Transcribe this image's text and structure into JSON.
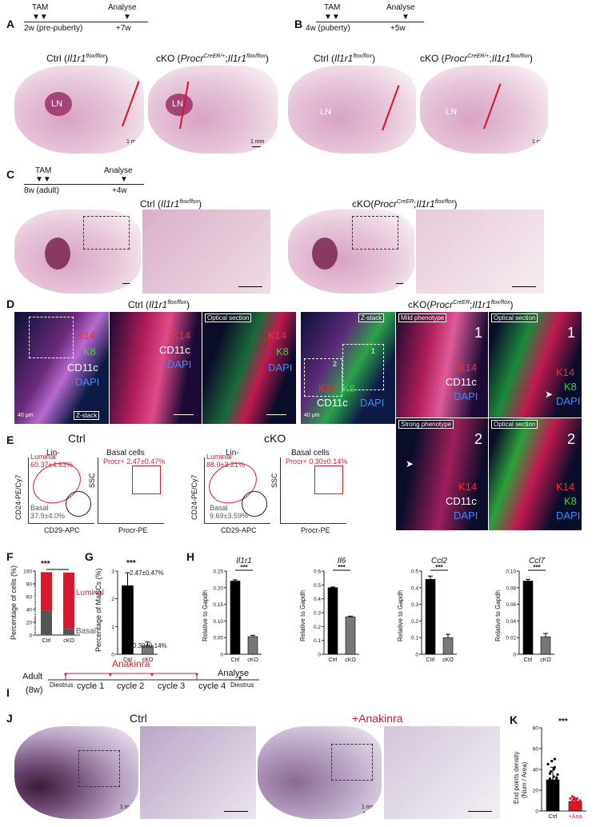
{
  "panels": {
    "A": {
      "letter": "A",
      "timeline": {
        "start": "TAM",
        "end": "Analyse",
        "age": "2w (pre-puberty)",
        "plus": "+7w"
      },
      "ctrl": {
        "prefix": "Ctrl (",
        "gene": "Il1r1",
        "sup": "flox/flox",
        "suffix": ")"
      },
      "cko": {
        "prefix": "cKO (",
        "gene": "Procr",
        "sup": "CreER/+",
        "mid": ";",
        "gene2": "Il1r1",
        "sup2": "flox/flox",
        "suffix": ")"
      },
      "ln": "LN",
      "scale": "1 mm"
    },
    "B": {
      "letter": "B",
      "timeline": {
        "start": "TAM",
        "end": "Analyse",
        "age": "4w (puberty)",
        "plus": "+5w"
      },
      "ln": "LN",
      "scale": "1 mm"
    },
    "C": {
      "letter": "C",
      "timeline": {
        "start": "TAM",
        "end": "Analyse",
        "age": "8w (adult)",
        "plus": "+4w"
      },
      "ctrl": {
        "prefix": "Ctrl (",
        "gene": "Il1r1",
        "sup": "flox/flox",
        "suffix": ")"
      },
      "cko": {
        "prefix": "cKO(",
        "gene": "Procr",
        "sup": "CreER",
        "mid": ";",
        "gene2": "Il1r1",
        "sup2": "flox/flox",
        "suffix": ")"
      }
    },
    "D": {
      "letter": "D",
      "ctrl_title": {
        "prefix": "Ctrl (",
        "gene": "Il1r1",
        "sup": "flox/flox",
        "suffix": ")"
      },
      "cko_title": {
        "prefix": "cKO(",
        "gene": "Procr",
        "sup": "CreER",
        "mid": ";",
        "gene2": "Il1r1",
        "sup2": "flox/flox",
        "suffix": ")"
      },
      "markers": {
        "k14": "K14",
        "k8": "K8",
        "cd11c": "CD11c",
        "dapi": "DAPI"
      },
      "tags": {
        "zstack": "Z-stack",
        "optical": "Optical section",
        "mild": "Mild phenotype",
        "strong": "Strong phenotype"
      },
      "scale": "40 μm",
      "n1": "1",
      "n2": "2"
    },
    "E": {
      "letter": "E",
      "ctrl_label": "Ctrl",
      "cko_label": "cKO",
      "lin": "Lin-",
      "basal_cells": "Basal cells",
      "ctrl": {
        "luminal": "Luminal",
        "luminal_val": "60.37±4.63%",
        "basal": "Basal",
        "basal_val": "37.9±4.0%",
        "procr": "Procr+ 2.47±0.47%"
      },
      "cko": {
        "luminal": "Luminal",
        "luminal_val": "88.0±3.21%",
        "basal": "Basal",
        "basal_val": "9.69±3.59%",
        "procr": "Procr+ 0.30±0.14%"
      },
      "axes": {
        "cd24": "CD24-PE/Cy7",
        "cd29": "CD29-APC",
        "ssc": "SSC",
        "procr": "Procr-PE"
      }
    },
    "F": {
      "letter": "F",
      "sig": "***",
      "ylabel": "Percentage of cells (%)",
      "luminal": "Luminal",
      "basal": "Basal",
      "ctrl_luminal_txt": "60.37±4.63",
      "ctrl_basal_txt": "37.9±4.0",
      "cko_luminal_txt": "88.0±3.21"
    },
    "G": {
      "letter": "G",
      "sig": "***",
      "ylabel": "Percentage of MaSCs (%)",
      "ctrl_val_txt": "2.47±0.47%",
      "cko_val_txt": "0.30±0.14%"
    },
    "H": {
      "letter": "H",
      "ylabel": "Relative to Gapdh"
    },
    "I": {
      "letter": "I",
      "adult": "Adult",
      "age": "(8w)",
      "drug": "Anakinra",
      "analyse": "Analyse",
      "diestrus1": "Diestrus",
      "diestrus2": "Diestrus",
      "cycles": [
        "cycle 1",
        "cycle 2",
        "cycle 3",
        "cycle 4"
      ]
    },
    "J": {
      "letter": "J",
      "ctrl": "Ctrl",
      "treat": "+Anakinra",
      "scale": "1 mm"
    },
    "K": {
      "letter": "K",
      "sig": "***",
      "ylabel": "End points density",
      "ylabel2": "(Num / Area)"
    }
  },
  "chart_data": [
    {
      "type": "bar",
      "panel": "F",
      "stacked": true,
      "categories": [
        "Ctrl",
        "cKO"
      ],
      "series": [
        {
          "name": "Basal",
          "values": [
            37.9,
            9.69
          ],
          "color": "#555555"
        },
        {
          "name": "Luminal",
          "values": [
            60.37,
            88.0
          ],
          "color": "#d7192b"
        }
      ],
      "ylim": [
        0,
        100
      ],
      "yticks": [
        "0",
        "20",
        "40",
        "60",
        "80",
        "100"
      ]
    },
    {
      "type": "bar",
      "panel": "G",
      "categories": [
        "Ctrl",
        "cKO"
      ],
      "values": [
        2.47,
        0.3
      ],
      "errors": [
        0.47,
        0.14
      ],
      "colors": [
        "#000000",
        "#777777"
      ],
      "ylim": [
        0,
        3
      ],
      "yticks": [
        "0",
        "1",
        "2",
        "3"
      ]
    },
    {
      "type": "bar",
      "panel": "H1",
      "title": "Il1r1",
      "categories": [
        "Ctrl",
        "cKO"
      ],
      "values": [
        0.22,
        0.053
      ],
      "errors": [
        0.004,
        0.004
      ],
      "colors": [
        "#000000",
        "#777777"
      ],
      "ylim": [
        0,
        0.25
      ],
      "yticks": [
        "0",
        "0.05",
        "0.10",
        "0.15",
        "0.20",
        "0.25"
      ],
      "sig": "***"
    },
    {
      "type": "bar",
      "panel": "H2",
      "title": "Il6",
      "categories": [
        "Ctrl",
        "cKO"
      ],
      "values": [
        0.48,
        0.27
      ],
      "errors": [
        0.005,
        0.005
      ],
      "colors": [
        "#000000",
        "#777777"
      ],
      "ylim": [
        0,
        0.6
      ],
      "yticks": [
        "0",
        "0.1",
        "0.2",
        "0.3",
        "0.4",
        "0.5",
        "0.6"
      ],
      "sig": "***"
    },
    {
      "type": "bar",
      "panel": "H3",
      "title": "Ccl2",
      "categories": [
        "Ctrl",
        "cKO"
      ],
      "values": [
        0.45,
        0.1
      ],
      "errors": [
        0.02,
        0.02
      ],
      "colors": [
        "#000000",
        "#777777"
      ],
      "ylim": [
        0,
        0.5
      ],
      "yticks": [
        "0",
        "0.1",
        "0.2",
        "0.3",
        "0.4",
        "0.5"
      ],
      "sig": "***"
    },
    {
      "type": "bar",
      "panel": "H4",
      "title": "Ccl7",
      "categories": [
        "Ctrl",
        "cKO"
      ],
      "values": [
        0.088,
        0.021
      ],
      "errors": [
        0.002,
        0.004
      ],
      "colors": [
        "#000000",
        "#777777"
      ],
      "ylim": [
        0,
        0.1
      ],
      "yticks": [
        "0",
        "0.02",
        "0.04",
        "0.06",
        "0.08",
        "0.10"
      ],
      "sig": "***"
    },
    {
      "type": "bar",
      "panel": "K",
      "categories": [
        "Ctrl",
        "+Ana"
      ],
      "values": [
        30,
        9
      ],
      "errors": [
        12,
        3
      ],
      "colors": [
        "#000000",
        "#d7192b"
      ],
      "ylim": [
        0,
        80
      ],
      "yticks": [
        "0",
        "20",
        "40",
        "60",
        "80"
      ],
      "points": [
        [
          18,
          22,
          25,
          27,
          28,
          30,
          31,
          33,
          35,
          38,
          42,
          45,
          48,
          20,
          24,
          29,
          32,
          36,
          40,
          26,
          15,
          50
        ],
        [
          5,
          6,
          7,
          8,
          8,
          9,
          9,
          10,
          10,
          11,
          12,
          12,
          13,
          7,
          9,
          11,
          6,
          14,
          8,
          10
        ]
      ]
    }
  ]
}
